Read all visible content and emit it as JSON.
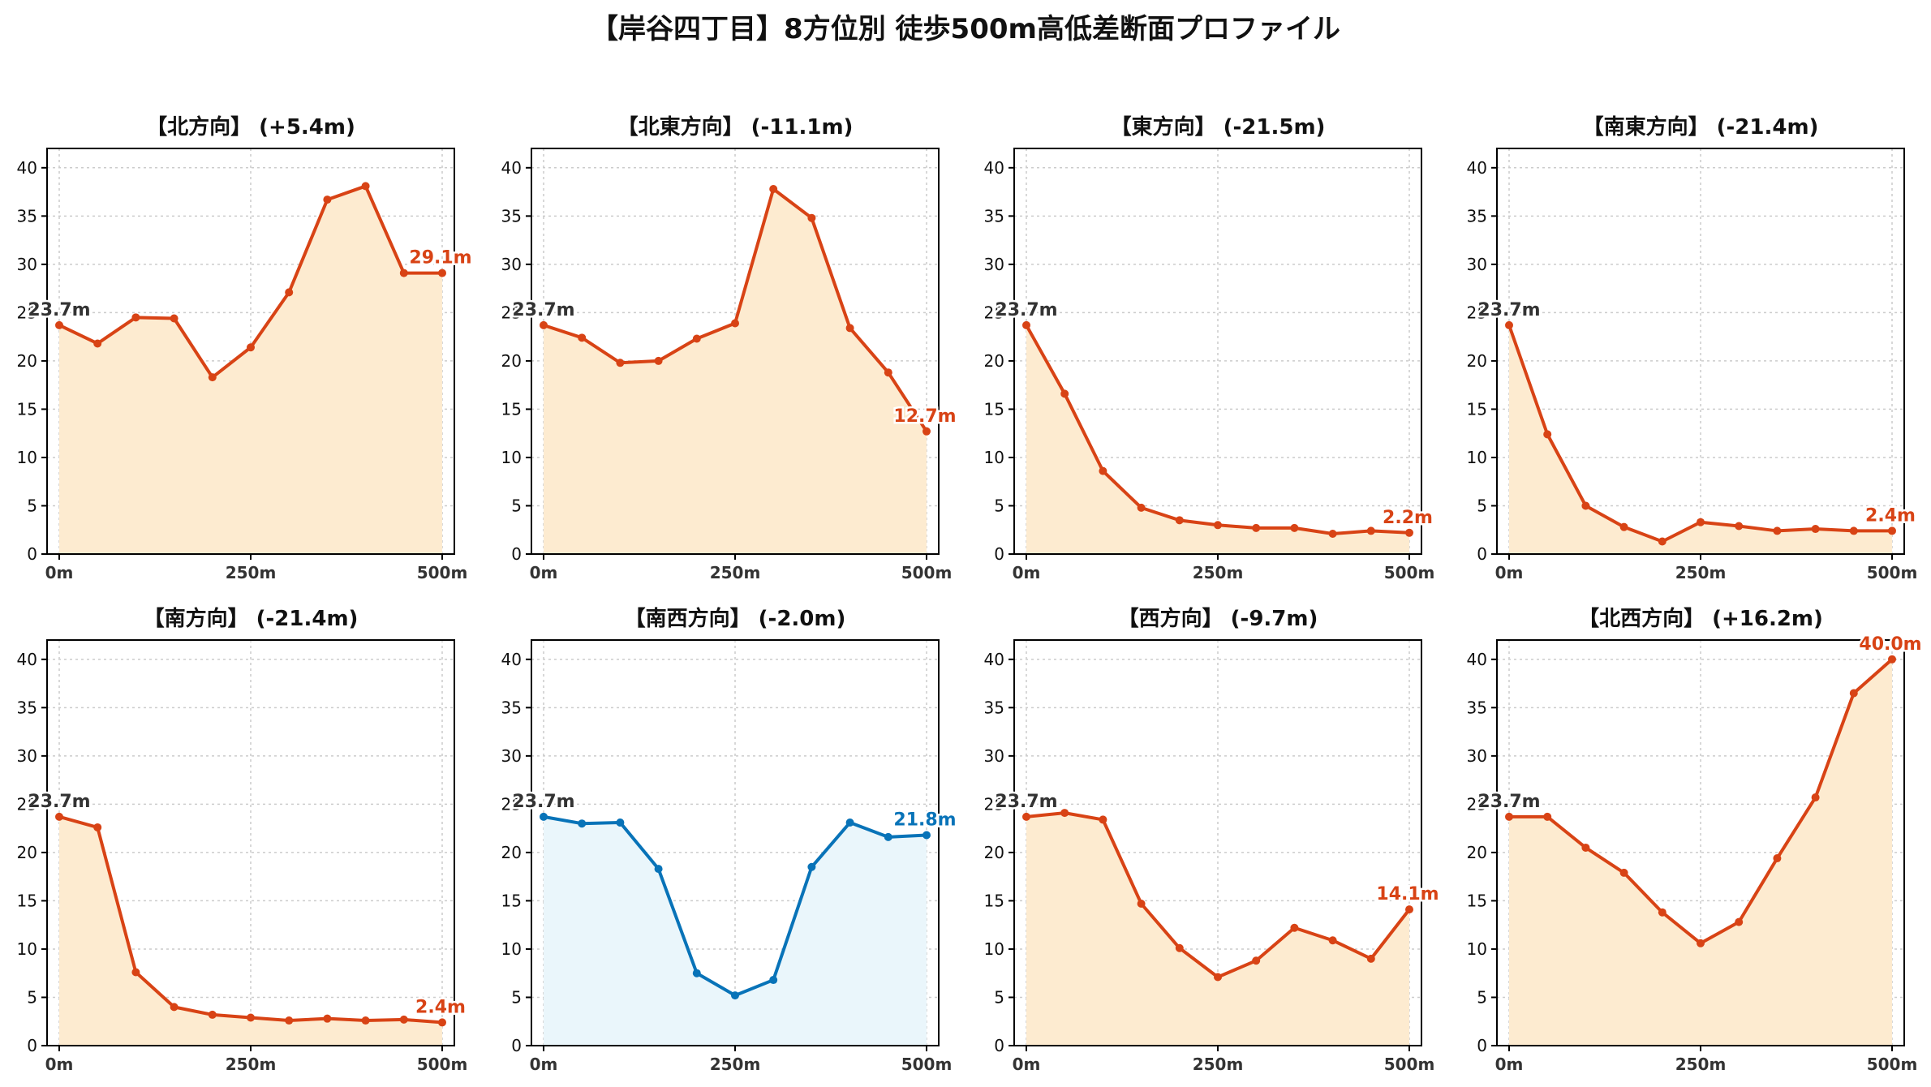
{
  "title": "【岸谷四丁目】8方位別 徒歩500m高低差断面プロファイル",
  "colors": {
    "up_line": "#D84315",
    "up_fill": "#FDEBD0",
    "down_line": "#0873B8",
    "down_fill": "#EAF6FB",
    "start_label": "#333333",
    "grid": "#cccccc",
    "axis": "#000000",
    "tick_label": "#333333"
  },
  "chart_data": [
    {
      "type": "area",
      "title": "【北方向】 (+5.4m)",
      "theme": "up",
      "x": [
        0,
        50,
        100,
        150,
        200,
        250,
        300,
        350,
        400,
        450,
        500
      ],
      "y": [
        23.7,
        21.8,
        24.5,
        24.4,
        18.3,
        21.4,
        27.1,
        36.7,
        38.1,
        29.1,
        29.1
      ],
      "start_label": "23.7m",
      "end_label": "29.1m",
      "xticks": [
        "0m",
        "250m",
        "500m"
      ],
      "yticks": [
        0,
        5,
        10,
        15,
        20,
        25,
        30,
        35,
        40
      ],
      "ylim": [
        0,
        42
      ],
      "grid": true
    },
    {
      "type": "area",
      "title": "【北東方向】 (-11.1m)",
      "theme": "up",
      "x": [
        0,
        50,
        100,
        150,
        200,
        250,
        300,
        350,
        400,
        450,
        500
      ],
      "y": [
        23.7,
        22.4,
        19.8,
        20.0,
        22.3,
        23.9,
        37.8,
        34.8,
        23.4,
        18.8,
        12.7
      ],
      "start_label": "23.7m",
      "end_label": "12.7m",
      "xticks": [
        "0m",
        "250m",
        "500m"
      ],
      "yticks": [
        0,
        5,
        10,
        15,
        20,
        25,
        30,
        35,
        40
      ],
      "ylim": [
        0,
        42
      ],
      "grid": true
    },
    {
      "type": "area",
      "title": "【東方向】 (-21.5m)",
      "theme": "up",
      "x": [
        0,
        50,
        100,
        150,
        200,
        250,
        300,
        350,
        400,
        450,
        500
      ],
      "y": [
        23.7,
        16.6,
        8.6,
        4.8,
        3.5,
        3.0,
        2.7,
        2.7,
        2.1,
        2.4,
        2.2
      ],
      "start_label": "23.7m",
      "end_label": "2.2m",
      "xticks": [
        "0m",
        "250m",
        "500m"
      ],
      "yticks": [
        0,
        5,
        10,
        15,
        20,
        25,
        30,
        35,
        40
      ],
      "ylim": [
        0,
        42
      ],
      "grid": true
    },
    {
      "type": "area",
      "title": "【南東方向】 (-21.4m)",
      "theme": "up",
      "x": [
        0,
        50,
        100,
        150,
        200,
        250,
        300,
        350,
        400,
        450,
        500
      ],
      "y": [
        23.7,
        12.4,
        5.0,
        2.8,
        1.3,
        3.3,
        2.9,
        2.4,
        2.6,
        2.4,
        2.4
      ],
      "start_label": "23.7m",
      "end_label": "2.4m",
      "xticks": [
        "0m",
        "250m",
        "500m"
      ],
      "yticks": [
        0,
        5,
        10,
        15,
        20,
        25,
        30,
        35,
        40
      ],
      "ylim": [
        0,
        42
      ],
      "grid": true
    },
    {
      "type": "area",
      "title": "【南方向】 (-21.4m)",
      "theme": "up",
      "x": [
        0,
        50,
        100,
        150,
        200,
        250,
        300,
        350,
        400,
        450,
        500
      ],
      "y": [
        23.7,
        22.6,
        7.6,
        4.0,
        3.2,
        2.9,
        2.6,
        2.8,
        2.6,
        2.7,
        2.4
      ],
      "start_label": "23.7m",
      "end_label": "2.4m",
      "xticks": [
        "0m",
        "250m",
        "500m"
      ],
      "yticks": [
        0,
        5,
        10,
        15,
        20,
        25,
        30,
        35,
        40
      ],
      "ylim": [
        0,
        42
      ],
      "grid": true
    },
    {
      "type": "area",
      "title": "【南西方向】 (-2.0m)",
      "theme": "down",
      "x": [
        0,
        50,
        100,
        150,
        200,
        250,
        300,
        350,
        400,
        450,
        500
      ],
      "y": [
        23.7,
        23.0,
        23.1,
        18.3,
        7.5,
        5.2,
        6.8,
        18.5,
        23.1,
        21.6,
        21.8
      ],
      "start_label": "23.7m",
      "end_label": "21.8m",
      "xticks": [
        "0m",
        "250m",
        "500m"
      ],
      "yticks": [
        0,
        5,
        10,
        15,
        20,
        25,
        30,
        35,
        40
      ],
      "ylim": [
        0,
        42
      ],
      "grid": true
    },
    {
      "type": "area",
      "title": "【西方向】 (-9.7m)",
      "theme": "up",
      "x": [
        0,
        50,
        100,
        150,
        200,
        250,
        300,
        350,
        400,
        450,
        500
      ],
      "y": [
        23.7,
        24.1,
        23.4,
        14.7,
        10.1,
        7.1,
        8.8,
        12.2,
        10.9,
        9.0,
        14.1
      ],
      "start_label": "23.7m",
      "end_label": "14.1m",
      "xticks": [
        "0m",
        "250m",
        "500m"
      ],
      "yticks": [
        0,
        5,
        10,
        15,
        20,
        25,
        30,
        35,
        40
      ],
      "ylim": [
        0,
        42
      ],
      "grid": true
    },
    {
      "type": "area",
      "title": "【北西方向】 (+16.2m)",
      "theme": "up",
      "x": [
        0,
        50,
        100,
        150,
        200,
        250,
        300,
        350,
        400,
        450,
        500
      ],
      "y": [
        23.7,
        23.7,
        20.5,
        17.9,
        13.8,
        10.6,
        12.8,
        19.4,
        25.7,
        36.5,
        40.0
      ],
      "start_label": "23.7m",
      "end_label": "40.0m",
      "xticks": [
        "0m",
        "250m",
        "500m"
      ],
      "yticks": [
        0,
        5,
        10,
        15,
        20,
        25,
        30,
        35,
        40
      ],
      "ylim": [
        0,
        42
      ],
      "grid": true
    }
  ]
}
